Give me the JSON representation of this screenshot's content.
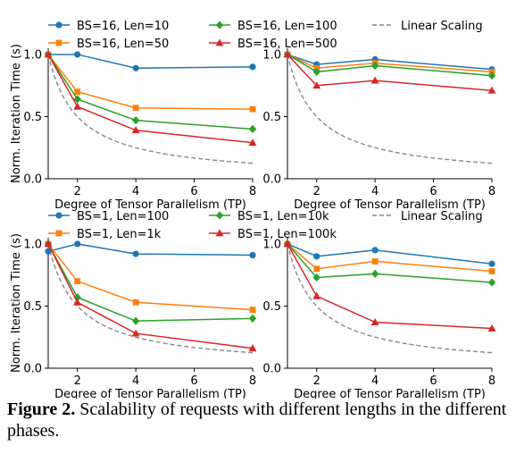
{
  "figure": {
    "label": "Figure 2.",
    "caption": "Scalability of requests with different lengths in the different phases."
  },
  "chart_data": [
    {
      "type": "line",
      "panel": "top-left",
      "xlabel": "Degree of Tensor Parallelism (TP)",
      "ylabel": "Norm. Iteration Time (s)",
      "xlim": [
        1,
        8
      ],
      "ylim": [
        0,
        1.05
      ],
      "xticks": [
        2,
        4,
        6,
        8
      ],
      "yticks": [
        0.0,
        0.5,
        1.0
      ],
      "x": [
        1,
        2,
        4,
        8
      ],
      "legend": "top",
      "series": [
        {
          "name": "BS=16, Len=10",
          "color": "#1f77b4",
          "marker": "circle",
          "values": [
            1.0,
            1.0,
            0.89,
            0.9
          ]
        },
        {
          "name": "BS=16, Len=50",
          "color": "#ff7f0e",
          "marker": "square",
          "values": [
            1.0,
            0.7,
            0.57,
            0.56
          ]
        },
        {
          "name": "BS=16, Len=100",
          "color": "#2ca02c",
          "marker": "diamond",
          "values": [
            1.0,
            0.64,
            0.47,
            0.4
          ]
        },
        {
          "name": "BS=16, Len=500",
          "color": "#d62728",
          "marker": "triangle",
          "values": [
            1.0,
            0.58,
            0.39,
            0.29
          ]
        }
      ],
      "reference": {
        "name": "Linear Scaling",
        "color": "#888888",
        "dash": true
      }
    },
    {
      "type": "line",
      "panel": "top-right",
      "xlabel": "Degree of Tensor Parallelism (TP)",
      "ylabel": "",
      "xlim": [
        1,
        8
      ],
      "ylim": [
        0,
        1.05
      ],
      "xticks": [
        2,
        4,
        6,
        8
      ],
      "yticks": [
        0.0,
        0.5,
        1.0
      ],
      "x": [
        1,
        2,
        4,
        8
      ],
      "series": [
        {
          "name": "BS=16, Len=10",
          "color": "#1f77b4",
          "marker": "circle",
          "values": [
            1.0,
            0.92,
            0.96,
            0.88
          ]
        },
        {
          "name": "BS=16, Len=50",
          "color": "#ff7f0e",
          "marker": "square",
          "values": [
            1.0,
            0.89,
            0.93,
            0.86
          ]
        },
        {
          "name": "BS=16, Len=100",
          "color": "#2ca02c",
          "marker": "diamond",
          "values": [
            1.0,
            0.86,
            0.91,
            0.83
          ]
        },
        {
          "name": "BS=16, Len=500",
          "color": "#d62728",
          "marker": "triangle",
          "values": [
            1.0,
            0.75,
            0.79,
            0.71
          ]
        }
      ],
      "reference": {
        "name": "Linear Scaling",
        "color": "#888888",
        "dash": true
      }
    },
    {
      "type": "line",
      "panel": "bottom-left",
      "xlabel": "Degree of Tensor Parallelism (TP)",
      "ylabel": "Norm. Iteration Time (s)",
      "xlim": [
        1,
        8
      ],
      "ylim": [
        0,
        1.05
      ],
      "xticks": [
        2,
        4,
        6,
        8
      ],
      "yticks": [
        0.0,
        0.5,
        1.0
      ],
      "x": [
        1,
        2,
        4,
        8
      ],
      "legend": "top",
      "series": [
        {
          "name": "BS=1, Len=100",
          "color": "#1f77b4",
          "marker": "circle",
          "values": [
            0.94,
            1.0,
            0.92,
            0.91
          ]
        },
        {
          "name": "BS=1, Len=1k",
          "color": "#ff7f0e",
          "marker": "square",
          "values": [
            1.0,
            0.7,
            0.53,
            0.47
          ]
        },
        {
          "name": "BS=1, Len=10k",
          "color": "#2ca02c",
          "marker": "diamond",
          "values": [
            1.0,
            0.57,
            0.38,
            0.4
          ]
        },
        {
          "name": "BS=1, Len=100k",
          "color": "#d62728",
          "marker": "triangle",
          "values": [
            1.0,
            0.53,
            0.28,
            0.16
          ]
        }
      ],
      "reference": {
        "name": "Linear Scaling",
        "color": "#888888",
        "dash": true
      }
    },
    {
      "type": "line",
      "panel": "bottom-right",
      "xlabel": "Degree of Tensor Parallelism (TP)",
      "ylabel": "",
      "xlim": [
        1,
        8
      ],
      "ylim": [
        0,
        1.05
      ],
      "xticks": [
        2,
        4,
        6,
        8
      ],
      "yticks": [
        0.0,
        0.5,
        1.0
      ],
      "x": [
        1,
        2,
        4,
        8
      ],
      "series": [
        {
          "name": "BS=1, Len=100",
          "color": "#1f77b4",
          "marker": "circle",
          "values": [
            1.0,
            0.9,
            0.95,
            0.84
          ]
        },
        {
          "name": "BS=1, Len=1k",
          "color": "#ff7f0e",
          "marker": "square",
          "values": [
            1.0,
            0.8,
            0.86,
            0.78
          ]
        },
        {
          "name": "BS=1, Len=10k",
          "color": "#2ca02c",
          "marker": "diamond",
          "values": [
            1.0,
            0.73,
            0.76,
            0.69
          ]
        },
        {
          "name": "BS=1, Len=100k",
          "color": "#d62728",
          "marker": "triangle",
          "values": [
            1.0,
            0.58,
            0.37,
            0.32
          ]
        }
      ],
      "reference": {
        "name": "Linear Scaling",
        "color": "#888888",
        "dash": true
      }
    }
  ]
}
